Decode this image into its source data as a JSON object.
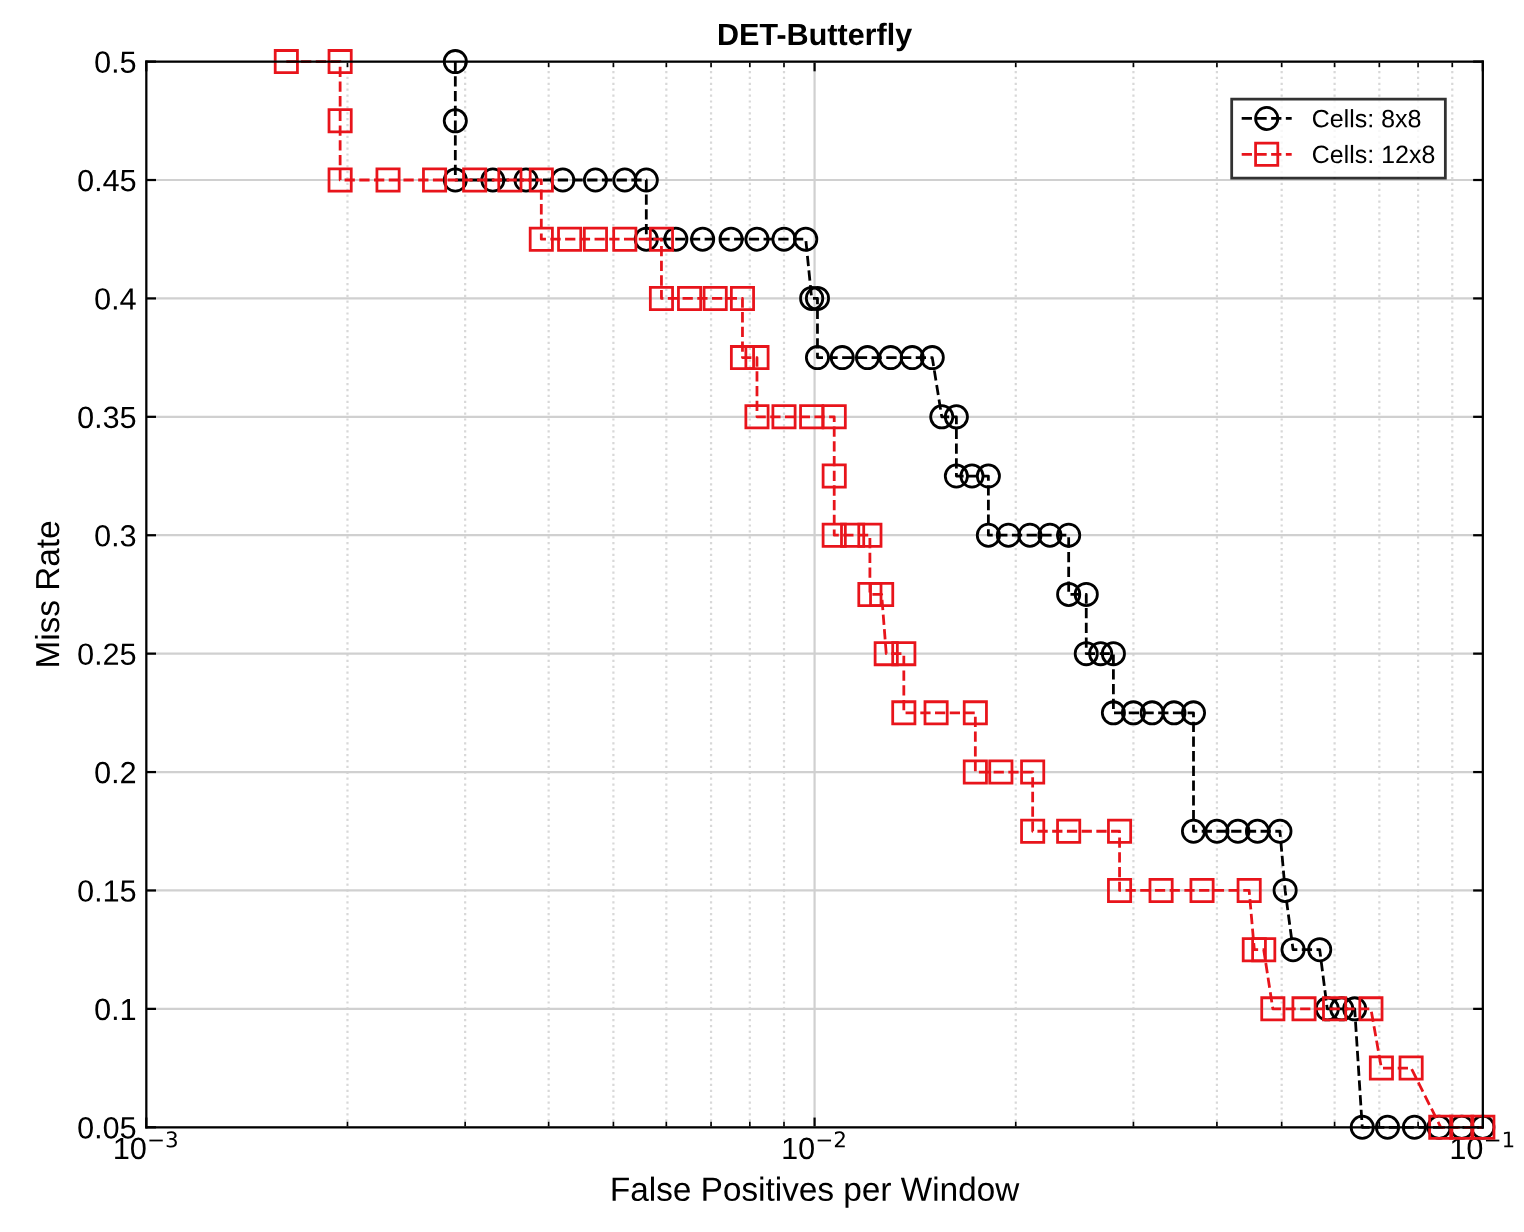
{
  "chart_data": {
    "type": "line",
    "title": "DET-Butterfly",
    "xlabel": "False Positives per Window",
    "ylabel": "Miss Rate",
    "log": "x",
    "grid": true,
    "legend": "top right",
    "line_style": "dashed",
    "xlim": [
      0.001,
      0.1
    ],
    "ylim": [
      0.05,
      0.5
    ],
    "xticks": [
      {
        "value": 0.001,
        "label": "10$^{−3}$"
      },
      {
        "value": 0.01,
        "label": "10$^{−2}$"
      },
      {
        "value": 0.1,
        "label": "10$^{−1}$"
      }
    ],
    "yticks": [
      0.05,
      0.1,
      0.15,
      0.2,
      0.25,
      0.3,
      0.35,
      0.4,
      0.45,
      0.5
    ],
    "series": [
      {
        "name": "Cells: 8x8",
        "color": "#000000",
        "marker": "circle",
        "x": [
          0.0029,
          0.0029,
          0.0029,
          0.0033,
          0.0037,
          0.0042,
          0.0047,
          0.0052,
          0.0056,
          0.0056,
          0.0062,
          0.0068,
          0.0075,
          0.0082,
          0.009,
          0.0097,
          0.0099,
          0.0101,
          0.0101,
          0.011,
          0.012,
          0.013,
          0.014,
          0.015,
          0.0155,
          0.0163,
          0.0163,
          0.0172,
          0.0182,
          0.0182,
          0.0195,
          0.021,
          0.0225,
          0.024,
          0.024,
          0.0255,
          0.0255,
          0.0268,
          0.028,
          0.028,
          0.03,
          0.032,
          0.0345,
          0.0369,
          0.0369,
          0.04,
          0.043,
          0.046,
          0.0497,
          0.0506,
          0.052,
          0.057,
          0.0585,
          0.0615,
          0.0643,
          0.066,
          0.072,
          0.079,
          0.086,
          0.093,
          0.1
        ],
        "values": [
          0.5,
          0.475,
          0.45,
          0.45,
          0.45,
          0.45,
          0.45,
          0.45,
          0.45,
          0.425,
          0.425,
          0.425,
          0.425,
          0.425,
          0.425,
          0.425,
          0.4,
          0.4,
          0.375,
          0.375,
          0.375,
          0.375,
          0.375,
          0.375,
          0.35,
          0.35,
          0.325,
          0.325,
          0.325,
          0.3,
          0.3,
          0.3,
          0.3,
          0.3,
          0.275,
          0.275,
          0.25,
          0.25,
          0.25,
          0.225,
          0.225,
          0.225,
          0.225,
          0.225,
          0.175,
          0.175,
          0.175,
          0.175,
          0.175,
          0.15,
          0.125,
          0.125,
          0.1,
          0.1,
          0.1,
          0.05,
          0.05,
          0.05,
          0.05,
          0.05,
          0.05
        ]
      },
      {
        "name": "Cells: 12x8",
        "color": "#e8141b",
        "marker": "square",
        "x": [
          0.00162,
          0.00195,
          0.00195,
          0.00195,
          0.0023,
          0.0027,
          0.0031,
          0.0035,
          0.0039,
          0.0039,
          0.0043,
          0.0047,
          0.0052,
          0.0059,
          0.0059,
          0.0065,
          0.0071,
          0.0078,
          0.0078,
          0.0082,
          0.0082,
          0.009,
          0.0099,
          0.0107,
          0.0107,
          0.0107,
          0.0114,
          0.0121,
          0.0121,
          0.0126,
          0.0128,
          0.0136,
          0.0136,
          0.0152,
          0.0174,
          0.0174,
          0.019,
          0.0212,
          0.0212,
          0.024,
          0.0286,
          0.0286,
          0.033,
          0.038,
          0.0447,
          0.0455,
          0.047,
          0.0485,
          0.054,
          0.06,
          0.068,
          0.0705,
          0.0781,
          0.0865,
          0.093,
          0.1
        ],
        "values": [
          0.5,
          0.5,
          0.475,
          0.45,
          0.45,
          0.45,
          0.45,
          0.45,
          0.45,
          0.425,
          0.425,
          0.425,
          0.425,
          0.425,
          0.4,
          0.4,
          0.4,
          0.4,
          0.375,
          0.375,
          0.35,
          0.35,
          0.35,
          0.35,
          0.325,
          0.3,
          0.3,
          0.3,
          0.275,
          0.275,
          0.25,
          0.25,
          0.225,
          0.225,
          0.225,
          0.2,
          0.2,
          0.2,
          0.175,
          0.175,
          0.175,
          0.15,
          0.15,
          0.15,
          0.15,
          0.125,
          0.125,
          0.1,
          0.1,
          0.1,
          0.1,
          0.075,
          0.075,
          0.05,
          0.05,
          0.05
        ]
      }
    ]
  }
}
